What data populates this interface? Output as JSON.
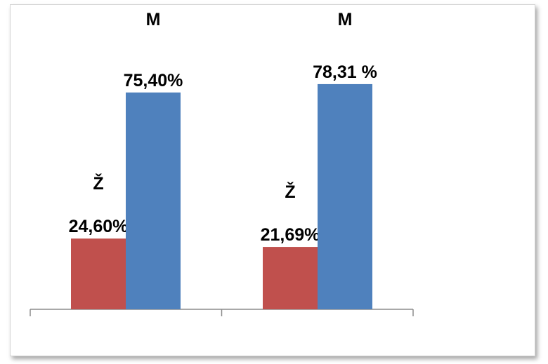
{
  "chart_data": {
    "type": "bar",
    "categories": [
      "",
      ""
    ],
    "series": [
      {
        "name": "Ž",
        "color": "#c0504d",
        "values": [
          24.6,
          21.69
        ]
      },
      {
        "name": "M",
        "color": "#4f81bd",
        "values": [
          75.4,
          78.31
        ]
      }
    ],
    "data_labels": [
      [
        "24,60%",
        "75,40%"
      ],
      [
        "21,69%",
        "78,31 %"
      ]
    ],
    "ylim": [
      0,
      100
    ],
    "grid": false,
    "legend": "none"
  }
}
